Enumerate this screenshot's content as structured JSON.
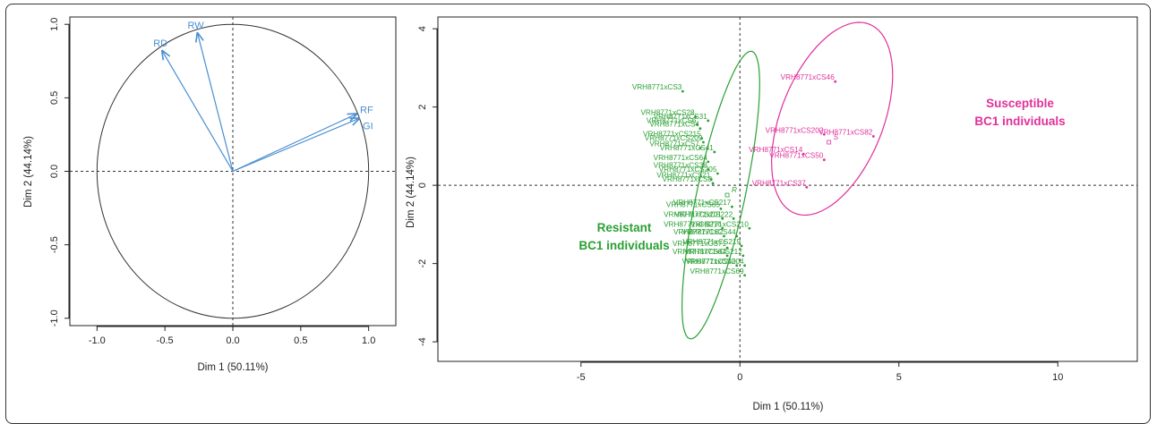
{
  "colors": {
    "variables": "#4a8fd0",
    "resistant": "#2aa033",
    "susceptible": "#e0309b",
    "axis": "#222222"
  },
  "chart_data": [
    {
      "type": "scatter",
      "subtype": "pca-variable-correlation-circle",
      "xlabel": "Dim 1 (50.11%)",
      "ylabel": "Dim 2 (44.14%)",
      "xlim": [
        -1.2,
        1.2
      ],
      "ylim": [
        -1.05,
        1.05
      ],
      "xticks": [
        -1.0,
        -0.5,
        0.0,
        0.5,
        1.0
      ],
      "yticks": [
        -1.0,
        -0.5,
        0.0,
        0.5,
        1.0
      ],
      "xtick_labels": [
        "-1.0",
        "-0.5",
        "0.0",
        "0.5",
        "1.0"
      ],
      "ytick_labels": [
        "-1.0",
        "-0.5",
        "0.0",
        "0.5",
        "1.0"
      ],
      "unit_circle": true,
      "vectors": [
        {
          "name": "RD",
          "x": -0.52,
          "y": 0.82
        },
        {
          "name": "RW",
          "x": -0.26,
          "y": 0.94
        },
        {
          "name": "RF",
          "x": 0.91,
          "y": 0.39
        },
        {
          "name": "GI",
          "x": 0.93,
          "y": 0.36
        }
      ]
    },
    {
      "type": "scatter",
      "subtype": "pca-individuals",
      "xlabel": "Dim 1 (50.11%)",
      "ylabel": "Dim 2 (44.14%)",
      "xlim": [
        -9.5,
        12.5
      ],
      "ylim": [
        -4.5,
        4.3
      ],
      "xticks": [
        -5,
        0,
        5,
        10
      ],
      "yticks": [
        -4,
        -2,
        0,
        2,
        4
      ],
      "xtick_labels": [
        "-5",
        "0",
        "5",
        "10"
      ],
      "ytick_labels": [
        "-4",
        "-2",
        "0",
        "2",
        "4"
      ],
      "groups": [
        {
          "name": "Resistant",
          "label_lines": [
            "Resistant",
            "BC1 individuals"
          ],
          "centroid_label": "R",
          "centroid": [
            -0.4,
            -0.25
          ],
          "ellipse": {
            "cx": -0.6,
            "cy": -0.25,
            "rx": 3.8,
            "ry": 0.75,
            "angle_deg": 75
          },
          "points": [
            {
              "label": "VRH8771xCS3",
              "x": -1.8,
              "y": 2.4
            },
            {
              "label": "VRH8771xCS28",
              "x": -1.4,
              "y": 1.75
            },
            {
              "label": "VRH8771xCS31",
              "x": -1.0,
              "y": 1.65
            },
            {
              "label": "VRH8771xCS6",
              "x": -1.35,
              "y": 1.55
            },
            {
              "label": "VRH8771xCS4",
              "x": -1.25,
              "y": 1.45
            },
            {
              "label": "VRH8771xCS215",
              "x": -1.2,
              "y": 1.2
            },
            {
              "label": "VRH8771xCS209",
              "x": -1.15,
              "y": 1.1
            },
            {
              "label": "VRH8771xCS7",
              "x": -1.25,
              "y": 0.95
            },
            {
              "label": "VRH8771xCS41",
              "x": -0.8,
              "y": 0.85
            },
            {
              "label": "VRH8771xCS64",
              "x": -1.0,
              "y": 0.6
            },
            {
              "label": "VRH8771xCS38",
              "x": -1.0,
              "y": 0.4
            },
            {
              "label": "VRH8771xCS205",
              "x": -0.7,
              "y": 0.3
            },
            {
              "label": "VRH8771xCS21",
              "x": -0.9,
              "y": 0.15
            },
            {
              "label": "VRH8771xCS8",
              "x": -0.85,
              "y": 0.05
            },
            {
              "label": "VRH8771xCS217",
              "x": -0.25,
              "y": -0.55
            },
            {
              "label": "VRH8771xCS85",
              "x": -0.6,
              "y": -0.6
            },
            {
              "label": "VRH8771xCS201",
              "x": -0.55,
              "y": -0.85
            },
            {
              "label": "VRH8771xCS222",
              "x": -0.2,
              "y": -0.85
            },
            {
              "label": "VRH8771xCS216",
              "x": -0.55,
              "y": -1.1
            },
            {
              "label": "VRH8771xCS210",
              "x": 0.3,
              "y": -1.1
            },
            {
              "label": "VRH8771xCS2",
              "x": -0.5,
              "y": -1.3
            },
            {
              "label": "VRH8771xCS44",
              "x": -0.1,
              "y": -1.3
            },
            {
              "label": "VRH8771xCS71",
              "x": -0.4,
              "y": -1.6
            },
            {
              "label": "VRH8771xCS219",
              "x": 0.05,
              "y": -1.55
            },
            {
              "label": "VRH8771xCS84",
              "x": -0.4,
              "y": -1.8
            },
            {
              "label": "VRH8771xCS212",
              "x": 0.1,
              "y": -1.8
            },
            {
              "label": "VRH8771xCS40",
              "x": -0.1,
              "y": -2.05
            },
            {
              "label": "VRH8771xCS204",
              "x": 0.15,
              "y": -2.05
            },
            {
              "label": "VRH8771xCS69",
              "x": 0.15,
              "y": -2.3
            }
          ]
        },
        {
          "name": "Susceptible",
          "label_lines": [
            "Susceptible",
            "BC1 individuals"
          ],
          "centroid_label": "S",
          "centroid": [
            2.8,
            1.1
          ],
          "ellipse": {
            "cx": 2.9,
            "cy": 1.7,
            "rx": 2.7,
            "ry": 1.55,
            "angle_deg": 60
          },
          "points": [
            {
              "label": "VRH8771xCS46",
              "x": 3.0,
              "y": 2.65
            },
            {
              "label": "VRH8771xCS202",
              "x": 2.65,
              "y": 1.3
            },
            {
              "label": "VRH8771xCS82",
              "x": 4.2,
              "y": 1.25
            },
            {
              "label": "VRH8771xCS14",
              "x": 2.0,
              "y": 0.8
            },
            {
              "label": "VRH8771xCS50",
              "x": 2.65,
              "y": 0.65
            },
            {
              "label": "VRH8771xCS37",
              "x": 2.1,
              "y": -0.05
            }
          ]
        }
      ]
    }
  ]
}
